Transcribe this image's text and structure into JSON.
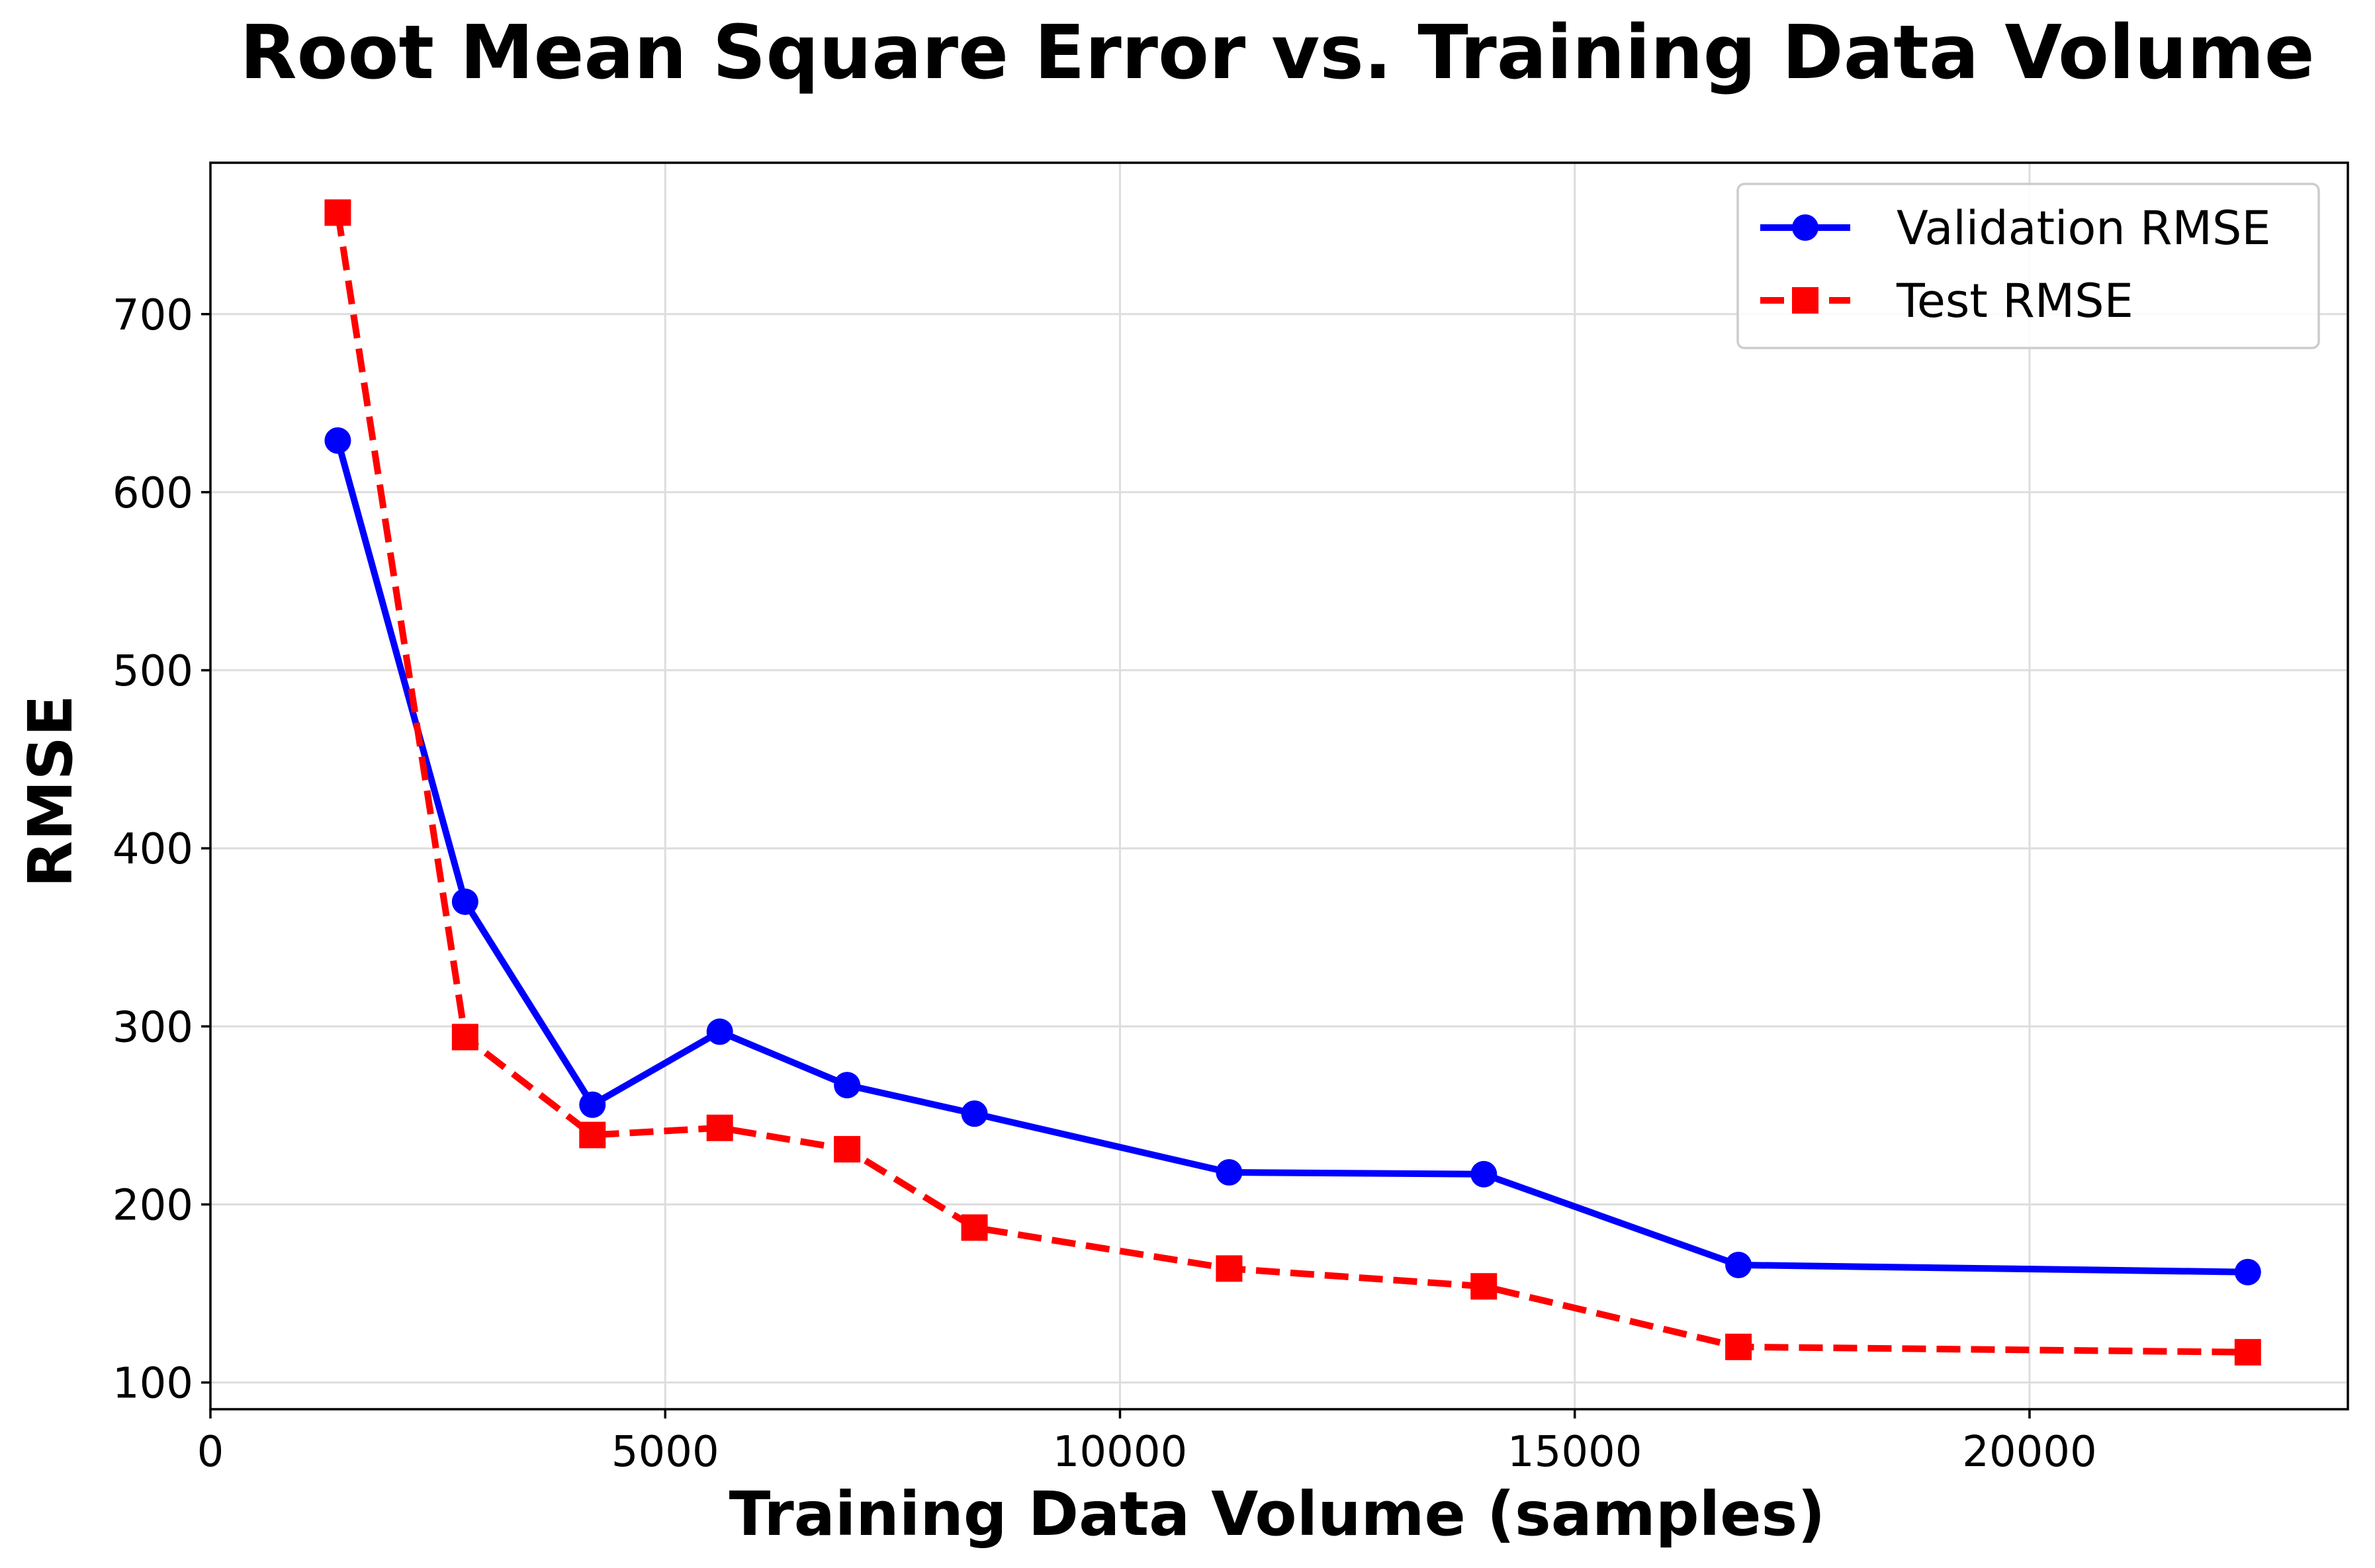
{
  "chart_data": {
    "type": "line",
    "title": "Root Mean Square Error vs. Training Data Volume",
    "xlabel": "Training Data Volume (samples)",
    "ylabel": "RMSE",
    "xlim": [
      0,
      23500
    ],
    "ylim": [
      85,
      785
    ],
    "xticks": [
      0,
      5000,
      10000,
      15000,
      20000
    ],
    "yticks": [
      100,
      200,
      300,
      400,
      500,
      600,
      700
    ],
    "grid": true,
    "legend_position": "top-right",
    "x": [
      1400,
      2800,
      4200,
      5600,
      7000,
      8400,
      11200,
      14000,
      16800,
      22400
    ],
    "series": [
      {
        "name": "Validation RMSE",
        "values": [
          629,
          370,
          256,
          297,
          267,
          251,
          218,
          217,
          166,
          162
        ],
        "color": "#0000ff",
        "marker": "circle",
        "linestyle": "solid"
      },
      {
        "name": "Test RMSE",
        "values": [
          757,
          294,
          239,
          243,
          231,
          187,
          164,
          154,
          120,
          117
        ],
        "color": "#ff0000",
        "marker": "square",
        "linestyle": "dashed"
      }
    ]
  }
}
